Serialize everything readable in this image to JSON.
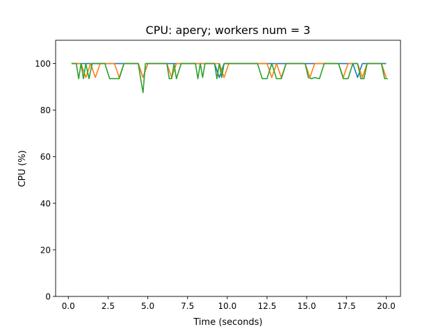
{
  "chart_data": {
    "type": "line",
    "title": "CPU: apery; workers num = 3",
    "xlabel": "Time (seconds)",
    "ylabel": "CPU (%)",
    "xlim": [
      -0.8,
      20.9
    ],
    "ylim": [
      0,
      110
    ],
    "xticks": [
      0.0,
      2.5,
      5.0,
      7.5,
      10.0,
      12.5,
      15.0,
      17.5,
      20.0
    ],
    "xtick_labels": [
      "0.0",
      "2.5",
      "5.0",
      "7.5",
      "10.0",
      "12.5",
      "15.0",
      "17.5",
      "20.0"
    ],
    "yticks": [
      0,
      20,
      40,
      60,
      80,
      100
    ],
    "ytick_labels": [
      "0",
      "20",
      "40",
      "60",
      "80",
      "100"
    ],
    "grid": false,
    "legend": false,
    "series": [
      {
        "color": "#1f77b4",
        "x": [
          0.2,
          0.5,
          0.8,
          1.1,
          1.4,
          1.7,
          2.0,
          2.3,
          2.6,
          2.9,
          3.2,
          3.5,
          3.8,
          4.1,
          4.4,
          4.7,
          5.0,
          5.3,
          5.6,
          5.9,
          6.2,
          6.5,
          6.8,
          7.1,
          7.4,
          7.7,
          8.0,
          8.3,
          8.6,
          8.9,
          9.2,
          9.5,
          9.8,
          10.1,
          10.4,
          10.7,
          11.0,
          11.3,
          11.6,
          11.9,
          12.2,
          12.5,
          12.8,
          13.1,
          13.4,
          13.7,
          14.0,
          14.3,
          14.6,
          14.9,
          15.2,
          15.5,
          15.8,
          16.1,
          16.4,
          16.7,
          17.0,
          17.3,
          17.6,
          17.9,
          18.2,
          18.5,
          18.8,
          19.1,
          19.4,
          19.7,
          20.0
        ],
        "values": [
          100,
          100,
          100,
          100,
          100,
          100,
          100,
          100,
          100,
          100,
          100,
          100,
          100,
          100,
          100,
          94,
          100,
          100,
          100,
          100,
          100,
          100,
          100,
          100,
          100,
          100,
          100,
          100,
          100,
          100,
          100,
          94,
          100,
          100,
          100,
          100,
          100,
          100,
          100,
          100,
          100,
          100,
          100,
          100,
          100,
          100,
          100,
          100,
          100,
          100,
          100,
          100,
          100,
          100,
          100,
          100,
          100,
          100,
          100,
          100,
          94,
          100,
          100,
          100,
          100,
          100,
          100
        ]
      },
      {
        "color": "#ff7f0e",
        "x": [
          0.2,
          0.5,
          0.8,
          1.1,
          1.4,
          1.7,
          2.0,
          2.3,
          2.6,
          2.9,
          3.2,
          3.5,
          3.8,
          4.1,
          4.4,
          4.7,
          5.0,
          5.3,
          5.6,
          5.9,
          6.2,
          6.5,
          6.8,
          7.1,
          7.4,
          7.7,
          8.0,
          8.3,
          8.6,
          8.9,
          9.2,
          9.5,
          9.8,
          10.1,
          10.4,
          10.7,
          11.0,
          11.3,
          11.6,
          11.9,
          12.2,
          12.5,
          12.8,
          13.1,
          13.4,
          13.7,
          14.0,
          14.3,
          14.6,
          14.9,
          15.2,
          15.5,
          15.8,
          16.1,
          16.4,
          16.7,
          17.0,
          17.3,
          17.6,
          17.9,
          18.2,
          18.5,
          18.8,
          19.1,
          19.4,
          19.7,
          20.0
        ],
        "values": [
          100,
          100,
          100,
          94,
          100,
          94,
          100,
          100,
          100,
          100,
          94,
          100,
          100,
          100,
          100,
          94,
          100,
          100,
          100,
          100,
          100,
          94,
          100,
          100,
          100,
          100,
          100,
          100,
          100,
          100,
          100,
          100,
          94,
          100,
          100,
          100,
          100,
          100,
          100,
          100,
          100,
          100,
          94,
          100,
          94,
          100,
          100,
          100,
          100,
          100,
          94,
          100,
          100,
          100,
          100,
          100,
          100,
          94,
          100,
          100,
          100,
          94,
          100,
          100,
          100,
          100,
          94
        ]
      },
      {
        "color": "#2ca02c",
        "x": [
          0.2,
          0.5,
          0.65,
          0.8,
          0.95,
          1.1,
          1.3,
          1.5,
          2.0,
          2.3,
          2.6,
          2.9,
          3.2,
          3.5,
          3.8,
          4.1,
          4.4,
          4.55,
          4.7,
          4.85,
          5.0,
          5.3,
          5.6,
          5.9,
          6.2,
          6.35,
          6.5,
          6.65,
          6.8,
          7.1,
          7.4,
          7.7,
          8.0,
          8.15,
          8.3,
          8.45,
          8.6,
          8.9,
          9.2,
          9.35,
          9.5,
          9.65,
          9.8,
          9.95,
          10.1,
          10.4,
          10.7,
          11.0,
          11.3,
          11.6,
          11.9,
          12.2,
          12.5,
          12.8,
          13.1,
          13.4,
          13.7,
          14.0,
          14.3,
          14.6,
          14.9,
          15.1,
          15.3,
          15.5,
          15.8,
          16.1,
          16.4,
          16.7,
          17.0,
          17.3,
          17.6,
          17.9,
          18.2,
          18.4,
          18.6,
          18.8,
          19.1,
          19.4,
          19.7,
          19.9,
          20.1
        ],
        "values": [
          100,
          100,
          93.5,
          100,
          93.5,
          100,
          93.5,
          100,
          100,
          100,
          93.5,
          93.5,
          93.5,
          100,
          100,
          100,
          100,
          93.5,
          87.5,
          100,
          100,
          100,
          100,
          100,
          100,
          93.5,
          93.5,
          100,
          93.5,
          100,
          100,
          100,
          100,
          93.5,
          100,
          94,
          100,
          100,
          100,
          93.5,
          100,
          94,
          100,
          100,
          100,
          100,
          100,
          100,
          100,
          100,
          100,
          93.5,
          93.5,
          100,
          93.5,
          93.5,
          100,
          100,
          100,
          100,
          100,
          94,
          93.5,
          94,
          93.5,
          100,
          100,
          100,
          100,
          93.5,
          93.5,
          100,
          100,
          93.5,
          93.5,
          100,
          100,
          100,
          100,
          93.5,
          93.5
        ]
      }
    ]
  }
}
